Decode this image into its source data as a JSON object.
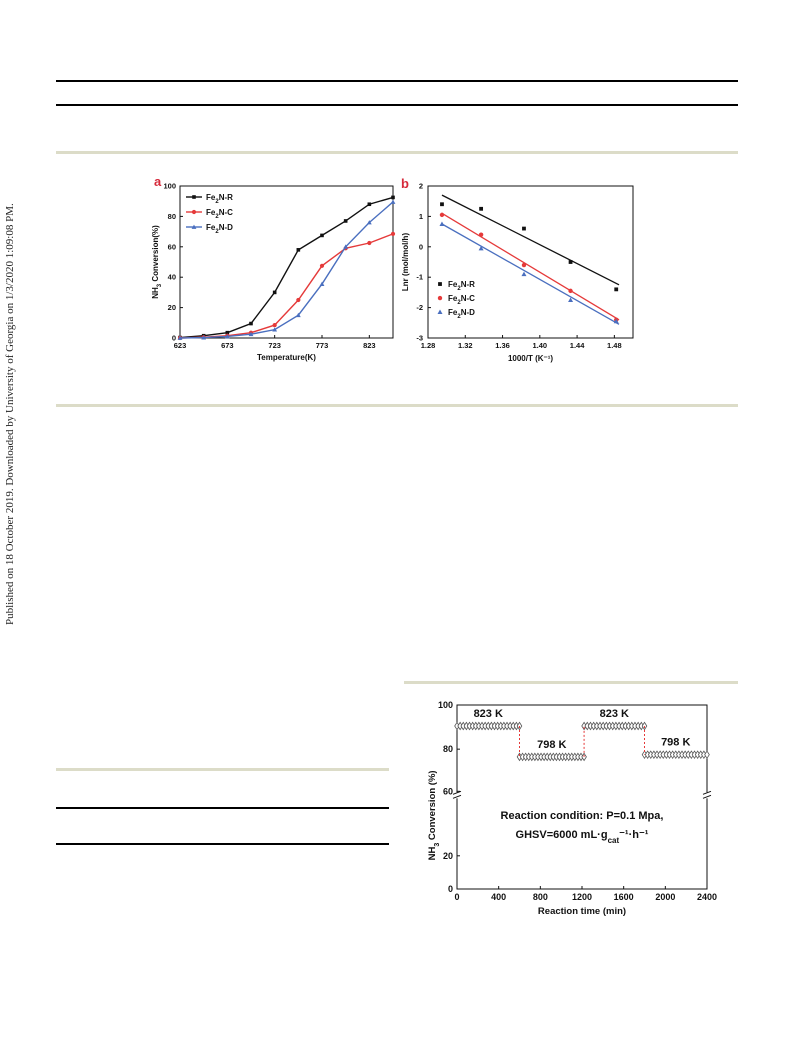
{
  "side_note": "Published on 18 October 2019. Downloaded by University of Georgia on 1/3/2020 1:09:08 PM.",
  "chart_data": [
    {
      "type": "line",
      "panel_label": "a",
      "xlabel": "Temperature(K)",
      "ylabel": "NH3 Conversion(%)",
      "xlim": [
        623,
        848
      ],
      "ylim": [
        0,
        100
      ],
      "xticks": [
        623,
        673,
        723,
        773,
        823
      ],
      "yticks": [
        0,
        20,
        40,
        60,
        80,
        100
      ],
      "legend_position": "top-left",
      "series": [
        {
          "name": "Fe2N-R",
          "color": "#111111",
          "marker": "square",
          "x": [
            623,
            648,
            673,
            698,
            723,
            748,
            773,
            798,
            823,
            848
          ],
          "y": [
            0.3,
            1.5,
            3.5,
            9.5,
            30,
            58,
            67.5,
            77,
            88,
            92.5
          ]
        },
        {
          "name": "Fe2N-C",
          "color": "#e53a3a",
          "marker": "circle",
          "x": [
            623,
            648,
            673,
            698,
            723,
            748,
            773,
            798,
            823,
            848
          ],
          "y": [
            0,
            0.5,
            1.5,
            3.5,
            8.5,
            25,
            47.5,
            59,
            62.5,
            68.5
          ]
        },
        {
          "name": "Fe2N-D",
          "color": "#4a6fbf",
          "marker": "triangle",
          "x": [
            623,
            648,
            673,
            698,
            723,
            748,
            773,
            798,
            823,
            848
          ],
          "y": [
            0,
            0.3,
            1,
            2.5,
            5.5,
            15,
            35.5,
            60,
            76,
            89.5
          ]
        }
      ]
    },
    {
      "type": "scatter",
      "panel_label": "b",
      "xlabel": "1000/T (K⁻¹)",
      "ylabel": "Lnr (mol_NH3/mol_Fe/h)",
      "xlim": [
        1.28,
        1.5
      ],
      "ylim": [
        -3,
        2
      ],
      "xticks": [
        1.28,
        1.32,
        1.36,
        1.4,
        1.44,
        1.48
      ],
      "yticks": [
        -3,
        -2,
        -1,
        0,
        1,
        2
      ],
      "legend_position": "bottom-left",
      "series": [
        {
          "name": "Fe2N-R",
          "color": "#111111",
          "marker": "square",
          "x": [
            1.295,
            1.337,
            1.383,
            1.433,
            1.482
          ],
          "y": [
            1.4,
            1.25,
            0.6,
            -0.5,
            -1.4
          ],
          "fit": [
            [
              1.295,
              1.7
            ],
            [
              1.485,
              -1.25
            ]
          ]
        },
        {
          "name": "Fe2N-C",
          "color": "#e53a3a",
          "marker": "circle",
          "x": [
            1.295,
            1.337,
            1.383,
            1.433,
            1.482
          ],
          "y": [
            1.05,
            0.4,
            -0.6,
            -1.45,
            -2.4
          ],
          "fit": [
            [
              1.295,
              1.1
            ],
            [
              1.485,
              -2.4
            ]
          ]
        },
        {
          "name": "Fe2N-D",
          "color": "#4a6fbf",
          "marker": "triangle",
          "x": [
            1.295,
            1.337,
            1.383,
            1.433,
            1.482
          ],
          "y": [
            0.75,
            -0.05,
            -0.9,
            -1.75,
            -2.45
          ],
          "fit": [
            [
              1.295,
              0.75
            ],
            [
              1.485,
              -2.55
            ]
          ]
        }
      ]
    },
    {
      "type": "scatter",
      "xlabel": "Reaction time (min)",
      "ylabel": "NH3 Conversion (%)",
      "xlim": [
        0,
        2400
      ],
      "xticks": [
        0,
        400,
        800,
        1200,
        1600,
        2000,
        2400
      ],
      "yticks": [
        0,
        20,
        60,
        80,
        100
      ],
      "y_axis_break": true,
      "annotation_lines": [
        "Reaction condition: P=0.1 Mpa,",
        "GHSV=6000 mL·g_cat⁻¹·h⁻¹"
      ],
      "segments": [
        {
          "label": "823 K",
          "x_start": 0,
          "x_end": 600,
          "y": 90.5
        },
        {
          "label": "798 K",
          "x_start": 600,
          "x_end": 1220,
          "y": 76.5
        },
        {
          "label": "823 K",
          "x_start": 1220,
          "x_end": 1800,
          "y": 90.5
        },
        {
          "label": "798 K",
          "x_start": 1800,
          "x_end": 2400,
          "y": 77.5
        }
      ]
    }
  ]
}
